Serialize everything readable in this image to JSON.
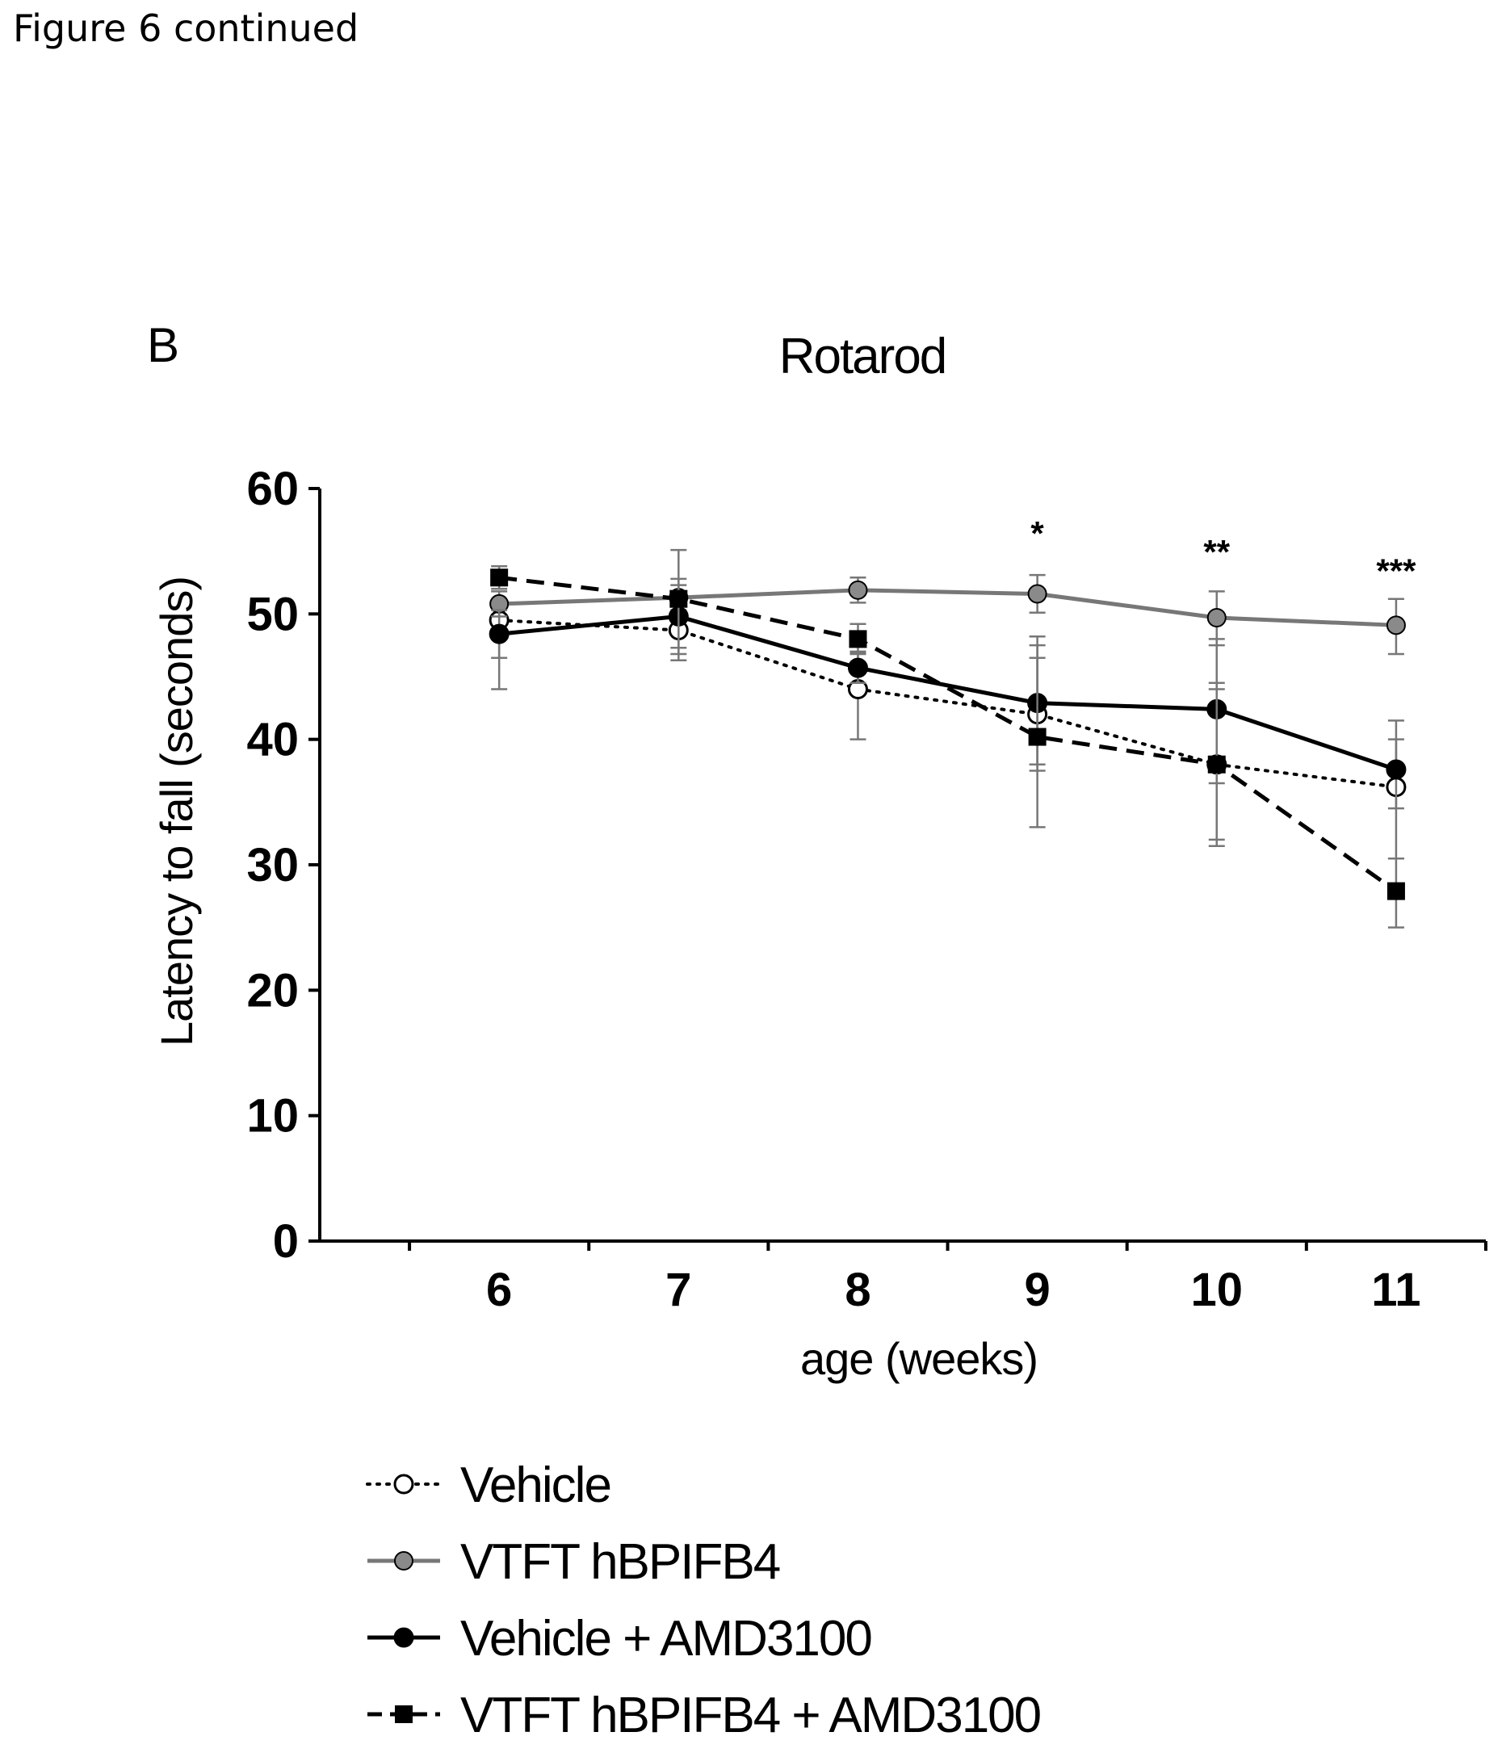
{
  "figure_caption": "Figure 6 continued",
  "chart_data": {
    "type": "line",
    "panel_label": "B",
    "title": "Rotarod",
    "xlabel": "age (weeks)",
    "ylabel": "Latency to fall (seconds)",
    "x": [
      6,
      7,
      8,
      9,
      10,
      11
    ],
    "x_ticks": [
      "6",
      "7",
      "8",
      "9",
      "10",
      "11"
    ],
    "xlim": [
      5,
      11.5
    ],
    "ylim": [
      0,
      60
    ],
    "y_ticks": [
      "0",
      "10",
      "20",
      "30",
      "40",
      "50",
      "60"
    ],
    "y_tick_values": [
      0,
      10,
      20,
      30,
      40,
      50,
      60
    ],
    "grid": false,
    "legend_position": "bottom",
    "annotations": [
      {
        "x": 9,
        "y": 55.5,
        "text": "*"
      },
      {
        "x": 10,
        "y": 54,
        "text": "**"
      },
      {
        "x": 11,
        "y": 52.5,
        "text": "***"
      }
    ],
    "series": [
      {
        "name": "Vehicle",
        "values": [
          49.5,
          48.7,
          44.0,
          42.0,
          38.0,
          36.2
        ],
        "err_low": [
          44.0,
          46.3,
          40.0,
          37.5,
          32.0,
          30.5
        ],
        "err_high": [
          51.0,
          51.0,
          47.0,
          47.5,
          44.0,
          40.0
        ],
        "color": "#000000",
        "marker": "open-circle",
        "dash": "dotted"
      },
      {
        "name": "VTFT hBPIFB4",
        "values": [
          50.8,
          51.3,
          51.9,
          51.6,
          49.7,
          49.1
        ],
        "err_low": [
          49.8,
          50.3,
          50.9,
          50.1,
          47.5,
          46.8
        ],
        "err_high": [
          51.8,
          52.3,
          52.9,
          53.1,
          51.8,
          51.2
        ],
        "color": "#777777",
        "marker": "gray-circle",
        "dash": "solid"
      },
      {
        "name": "Vehicle + AMD3100",
        "values": [
          48.4,
          49.8,
          45.7,
          42.9,
          42.4,
          37.6
        ],
        "err_low": [
          46.5,
          46.8,
          44.5,
          38.0,
          36.5,
          34.5
        ],
        "err_high": [
          50.3,
          52.8,
          46.9,
          46.5,
          48.0,
          41.5
        ],
        "color": "#000000",
        "marker": "filled-circle",
        "dash": "solid"
      },
      {
        "name": "VTFT hBPIFB4 + AMD3100",
        "values": [
          52.9,
          51.2,
          48.0,
          40.2,
          38.0,
          27.9
        ],
        "err_low": [
          52.0,
          47.3,
          46.8,
          33.0,
          31.5,
          25.0
        ],
        "err_high": [
          53.8,
          55.1,
          49.2,
          48.2,
          44.5,
          30.5
        ],
        "color": "#000000",
        "marker": "filled-square",
        "dash": "dashed"
      }
    ]
  }
}
